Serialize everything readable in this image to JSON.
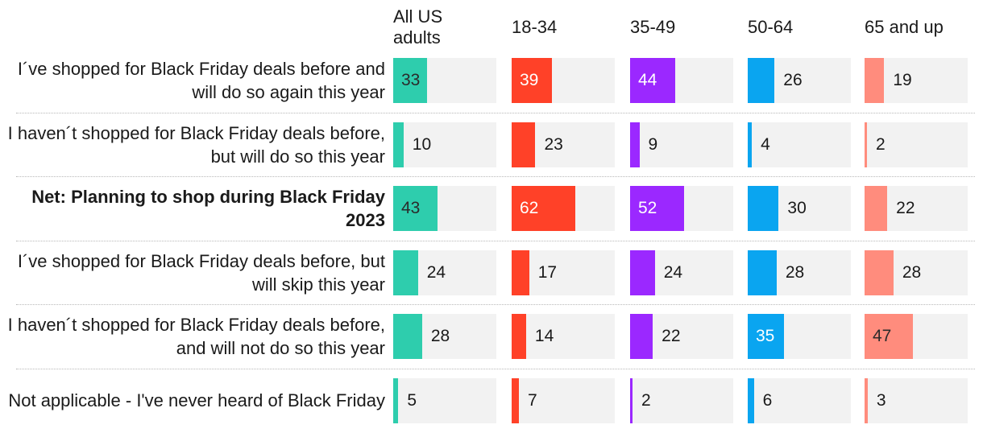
{
  "chart_data": {
    "type": "bar",
    "orientation": "horizontal",
    "xlim": [
      0,
      100
    ],
    "grid": false,
    "legend": "none",
    "groups": [
      "All US\nadults",
      "18-34",
      "35-49",
      "50-64",
      "65 and up"
    ],
    "group_colors": [
      "#2ecdad",
      "#ff4128",
      "#9b28ff",
      "#0aa5f0",
      "#ff8c7d"
    ],
    "categories": [
      {
        "label": "I´ve shopped for Black Friday deals before and will do so again this year",
        "bold": false
      },
      {
        "label": "I haven´t shopped for Black Friday deals before, but will do so this year",
        "bold": false
      },
      {
        "label": "Net: Planning to shop during Black Friday 2023",
        "bold": true
      },
      {
        "label": "I´ve shopped for Black Friday deals before, but will skip this year",
        "bold": false
      },
      {
        "label": "I haven´t shopped for Black Friday deals before, and will not do so this year",
        "bold": false
      },
      {
        "label": "Not applicable - I've never heard of Black Friday",
        "bold": false
      }
    ],
    "series": [
      {
        "name": "All US adults",
        "values": [
          33,
          10,
          43,
          24,
          28,
          5
        ]
      },
      {
        "name": "18-34",
        "values": [
          39,
          23,
          62,
          17,
          14,
          7
        ]
      },
      {
        "name": "35-49",
        "values": [
          44,
          9,
          52,
          24,
          22,
          2
        ]
      },
      {
        "name": "50-64",
        "values": [
          26,
          4,
          30,
          28,
          35,
          6
        ]
      },
      {
        "name": "65 and up",
        "values": [
          19,
          2,
          22,
          28,
          47,
          3
        ]
      }
    ]
  }
}
